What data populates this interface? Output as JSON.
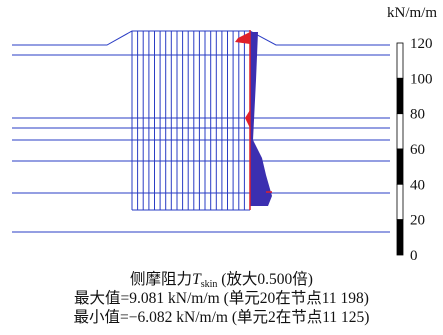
{
  "legend": {
    "unit": "kN/m/m",
    "ticks": [
      "120",
      "100",
      "80",
      "60",
      "40",
      "20",
      "0"
    ]
  },
  "caption": {
    "line1_prefix": "侧摩阻力",
    "line1_symbol": "T",
    "line1_subscript": "skin",
    "line1_suffix": " (放大0.500倍)",
    "line2": "最大值=9.081 kN/m/m (单元20在节点11 198)",
    "line3": "最小值=−6.082 kN/m/m (单元2在节点11 125)"
  },
  "colors": {
    "mesh": "#2a3cc4",
    "positive": "#3b2fb0",
    "negative": "#e0202a",
    "scalebar_dark": "#000000",
    "scalebar_light": "#ffffff"
  }
}
